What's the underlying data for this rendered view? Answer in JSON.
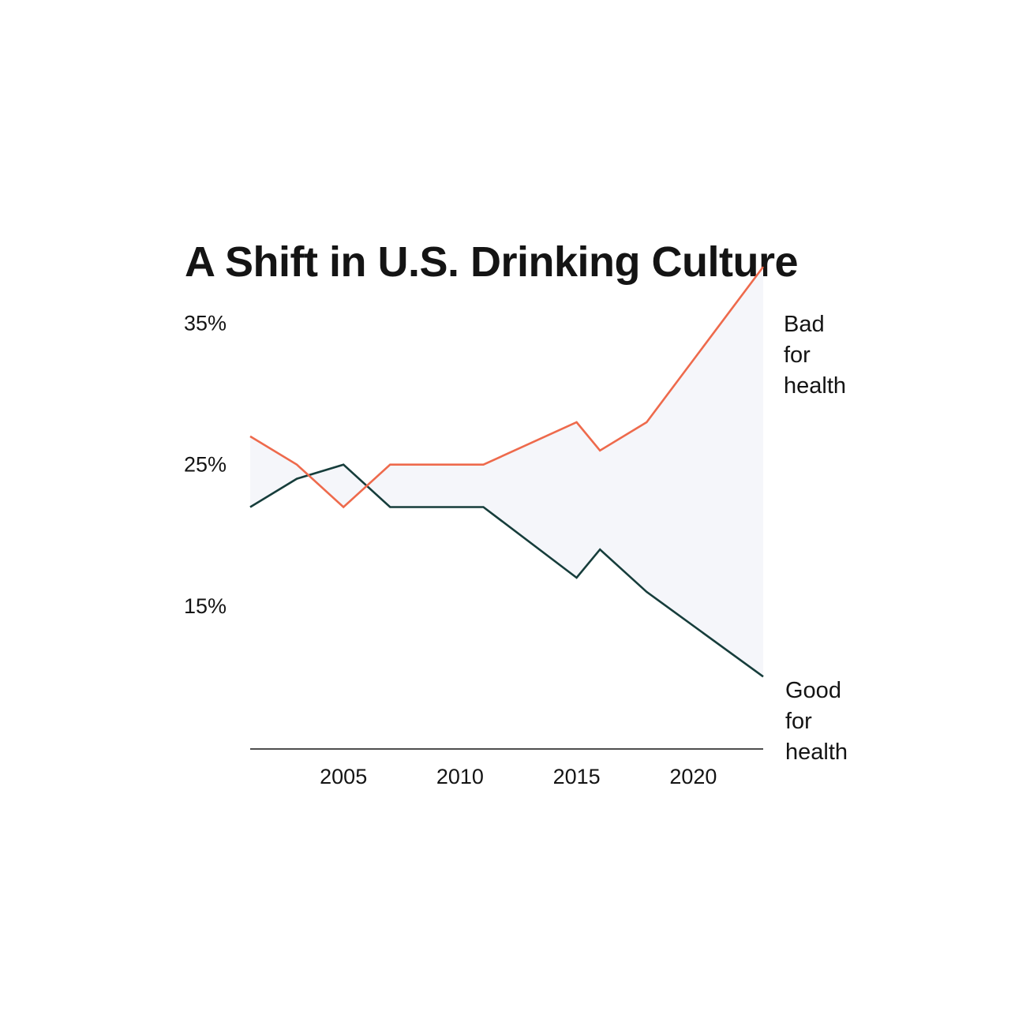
{
  "chart_data": {
    "type": "line",
    "title": "A Shift in U.S. Drinking Culture",
    "xlabel": "",
    "ylabel": "",
    "x": [
      2001,
      2003,
      2005,
      2007,
      2011,
      2015,
      2016,
      2018,
      2023
    ],
    "xlim": [
      2001,
      2023
    ],
    "ylim": [
      7,
      38
    ],
    "x_ticks": [
      {
        "value": 2005,
        "label": "2005"
      },
      {
        "value": 2010,
        "label": "2010"
      },
      {
        "value": 2015,
        "label": "2015"
      },
      {
        "value": 2020,
        "label": "2020"
      }
    ],
    "y_ticks": [
      {
        "value": 35,
        "label": "35%"
      },
      {
        "value": 25,
        "label": "25%"
      },
      {
        "value": 15,
        "label": "15%"
      }
    ],
    "grid": false,
    "legend": "direct labels at right end of lines",
    "series": [
      {
        "label_lines": [
          "Bad",
          "for",
          "health"
        ],
        "color": "#ee6a4c",
        "values": [
          27,
          25,
          22,
          25,
          25,
          28,
          26,
          28,
          39
        ]
      },
      {
        "label_lines": [
          "Good",
          "for",
          "health"
        ],
        "color": "#163d3b",
        "values": [
          22,
          24,
          25,
          22,
          22,
          17,
          19,
          16,
          10
        ]
      }
    ],
    "fill_between_color": "#f5f6fa",
    "axis_color": "#141414"
  }
}
